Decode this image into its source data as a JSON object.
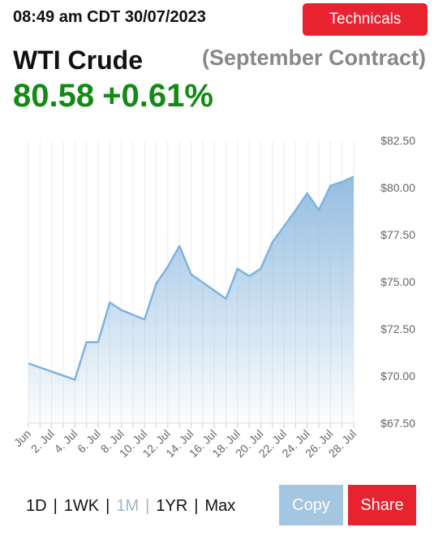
{
  "header": {
    "timestamp": "08:49 am CDT 30/07/2023",
    "technicals_label": "Technicals",
    "title": "WTI Crude",
    "contract": "(September Contract)",
    "price": "80.58",
    "change": "+0.61%"
  },
  "colors": {
    "accent_red": "#e8222e",
    "price_green": "#138a13",
    "line_blue": "#7db3e3",
    "copy_blue": "#a4c6e0"
  },
  "chart_data": {
    "type": "area",
    "title": "",
    "xlabel": "",
    "ylabel": "",
    "ylim": [
      67.5,
      82.5
    ],
    "yticks": [
      "$82.50",
      "$80.00",
      "$77.50",
      "$75.00",
      "$72.50",
      "$70.00",
      "$67.50"
    ],
    "xticks": [
      "Jun",
      "2. Jul",
      "4. Jul",
      "6. Jul",
      "8. Jul",
      "10. Jul",
      "12. Jul",
      "14. Jul",
      "16. Jul",
      "18. Jul",
      "20. Jul",
      "22. Jul",
      "24. Jul",
      "26. Jul",
      "28. Jul"
    ],
    "grid": "vertical",
    "series": [
      {
        "x": [
          0,
          2,
          2.5,
          3,
          3.5,
          4,
          5,
          5.5,
          6,
          6.5,
          7,
          8.5,
          9,
          9.5,
          10,
          10.5,
          11.5,
          12,
          12.5,
          13,
          13.5,
          14
        ],
        "values": [
          70.67,
          69.8,
          71.8,
          71.8,
          73.9,
          73.5,
          73.0,
          74.9,
          75.8,
          76.9,
          75.4,
          74.1,
          75.7,
          75.3,
          75.7,
          77.1,
          78.8,
          79.7,
          78.8,
          80.1,
          80.3,
          80.58
        ]
      }
    ]
  },
  "footer": {
    "ranges": [
      "1D",
      "1WK",
      "1M",
      "1YR",
      "Max"
    ],
    "active_range": "1M",
    "copy_label": "Copy",
    "share_label": "Share"
  }
}
